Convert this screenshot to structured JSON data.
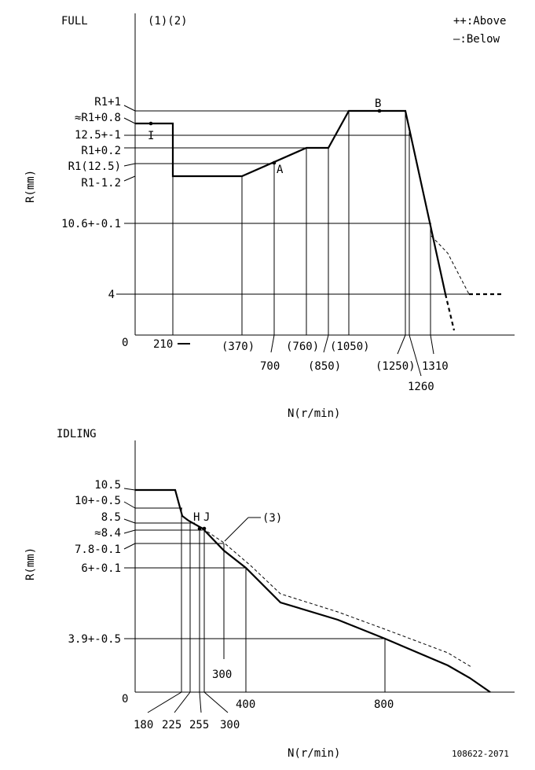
{
  "full": {
    "title": "FULL",
    "notes": "(1)(2)",
    "legend_above": "++:Above",
    "legend_below": "—:Below",
    "y_axis_label": "R(mm)",
    "x_axis_label": "N(r/min)",
    "origin": "0",
    "y_labels": [
      "R1+1",
      "≈R1+0.8",
      "12.5+-1",
      "R1+0.2",
      "R1(12.5)",
      "R1-1.2",
      "10.6+-0.1",
      "4"
    ],
    "x_labels": [
      "210",
      "(370)",
      "700",
      "(760)",
      "(850)",
      "(1050)",
      "(1250)",
      "1260",
      "1310"
    ],
    "point_labels": [
      "I",
      "A",
      "B"
    ]
  },
  "idling": {
    "title": "IDLING",
    "y_axis_label": "R(mm)",
    "x_axis_label": "N(r/min)",
    "origin": "0",
    "y_labels": [
      "10.5",
      "10+-0.5",
      "8.5",
      "≈8.4",
      "7.8-0.1",
      "6+-0.1",
      "3.9+-0.5"
    ],
    "x_labels": [
      "180",
      "225",
      "255",
      "300",
      "400",
      "800",
      "300"
    ],
    "point_labels": [
      "H",
      "J"
    ],
    "note": "(3)"
  },
  "footer": {
    "code": "108622-2071"
  }
}
